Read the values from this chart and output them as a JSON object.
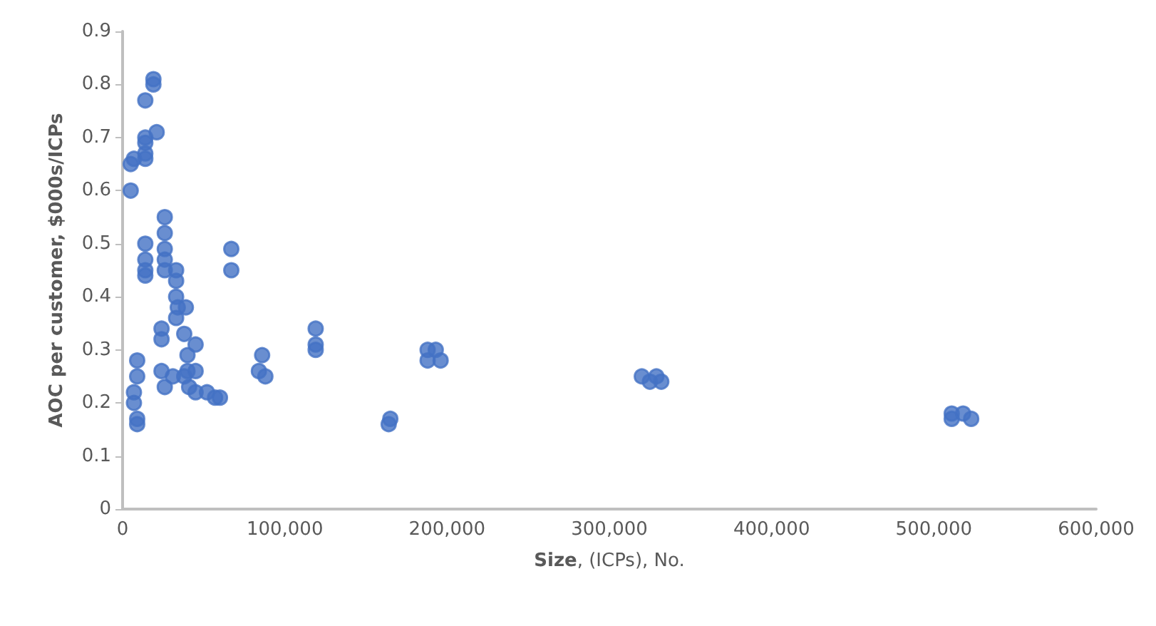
{
  "chart_data": {
    "type": "scatter",
    "xlabel": "Size, (ICPs), No.",
    "ylabel": "AOC per customer, $000s/ICPs",
    "xlim": [
      0,
      600000
    ],
    "xticks": [
      {
        "value": 0,
        "label": "0"
      },
      {
        "value": 100000,
        "label": "100,000"
      },
      {
        "value": 200000,
        "label": "200,000"
      },
      {
        "value": 300000,
        "label": "300,000"
      },
      {
        "value": 400000,
        "label": "400,000"
      },
      {
        "value": 500000,
        "label": "500,000"
      },
      {
        "value": 600000,
        "label": "600,000"
      }
    ],
    "ylim": [
      0,
      0.9
    ],
    "yticks": [
      0,
      0.1,
      0.2,
      0.3,
      0.4,
      0.5,
      0.6,
      0.7,
      0.8,
      0.9
    ],
    "grid": false,
    "marker": "circle",
    "series": [
      {
        "color": "#4472c4",
        "x": [
          19000,
          19000,
          14000,
          21000,
          14000,
          14000,
          14000,
          14000,
          5000,
          7000,
          5000,
          14000,
          14000,
          14000,
          14000,
          26000,
          26000,
          26000,
          26000,
          26000,
          33000,
          33000,
          33000,
          34000,
          39000,
          33000,
          24000,
          24000,
          38000,
          45000,
          9000,
          9000,
          7000,
          7000,
          9000,
          9000,
          24000,
          26000,
          31000,
          40000,
          40000,
          41000,
          45000,
          52000,
          57000,
          60000,
          45000,
          38000,
          67000,
          67000,
          84000,
          86000,
          88000,
          119000,
          119000,
          119000,
          164000,
          165000,
          188000,
          193000,
          196000,
          188000,
          320000,
          325000,
          329000,
          332000,
          511000,
          511000,
          518000,
          523000
        ],
        "values": [
          0.81,
          0.8,
          0.77,
          0.71,
          0.7,
          0.69,
          0.67,
          0.66,
          0.65,
          0.66,
          0.6,
          0.5,
          0.47,
          0.45,
          0.44,
          0.55,
          0.52,
          0.49,
          0.47,
          0.45,
          0.45,
          0.43,
          0.4,
          0.38,
          0.38,
          0.36,
          0.34,
          0.32,
          0.33,
          0.31,
          0.28,
          0.25,
          0.22,
          0.2,
          0.17,
          0.16,
          0.26,
          0.23,
          0.25,
          0.29,
          0.26,
          0.23,
          0.22,
          0.22,
          0.21,
          0.21,
          0.26,
          0.25,
          0.49,
          0.45,
          0.26,
          0.29,
          0.25,
          0.34,
          0.31,
          0.3,
          0.16,
          0.17,
          0.3,
          0.3,
          0.28,
          0.28,
          0.25,
          0.24,
          0.25,
          0.24,
          0.18,
          0.17,
          0.18,
          0.17
        ]
      }
    ]
  }
}
